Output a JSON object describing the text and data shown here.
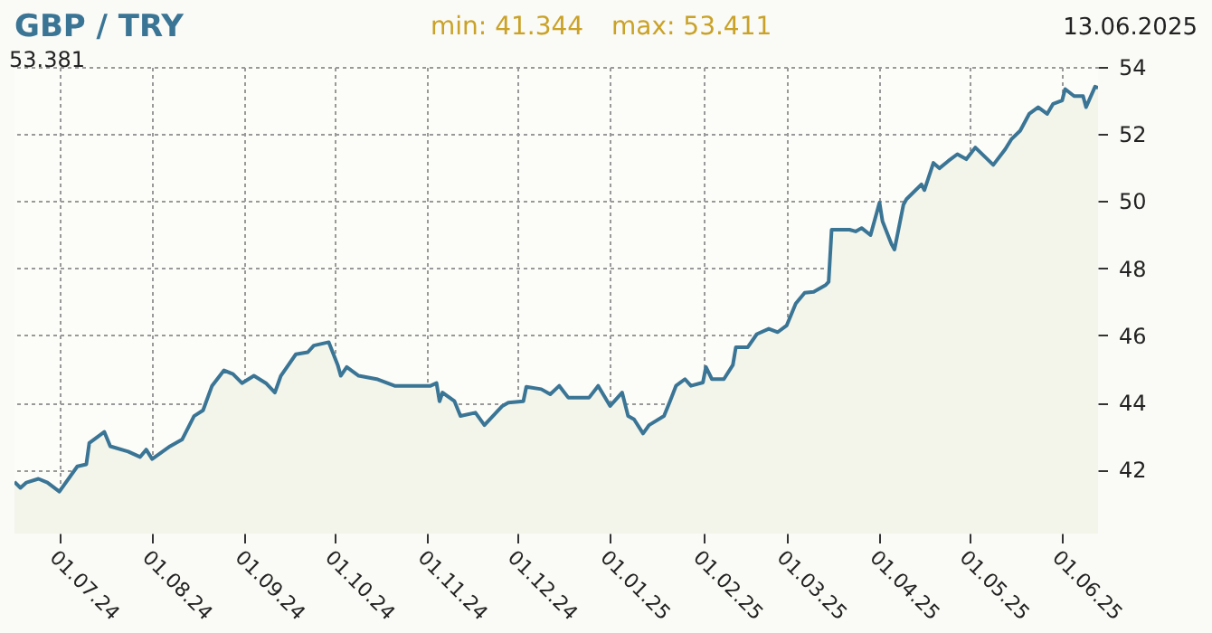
{
  "chart_data": {
    "type": "area",
    "title": "GBP / TRY",
    "annotations": [
      "min: 41.344",
      "max: 53.411",
      "13.06.2025",
      "53.381"
    ],
    "x": [
      "2024-06-16",
      "2024-06-18",
      "2024-06-20",
      "2024-06-24",
      "2024-06-27",
      "2024-07-01",
      "2024-07-07",
      "2024-07-10",
      "2024-07-11",
      "2024-07-16",
      "2024-07-18",
      "2024-07-24",
      "2024-07-28",
      "2024-07-30",
      "2024-08-01",
      "2024-08-07",
      "2024-08-11",
      "2024-08-15",
      "2024-08-18",
      "2024-08-21",
      "2024-08-25",
      "2024-08-28",
      "2024-08-31",
      "2024-09-04",
      "2024-09-08",
      "2024-09-11",
      "2024-09-13",
      "2024-09-18",
      "2024-09-22",
      "2024-09-24",
      "2024-09-29",
      "2024-10-02",
      "2024-10-03",
      "2024-10-05",
      "2024-10-09",
      "2024-10-15",
      "2024-10-21",
      "2024-10-27",
      "2024-11-02",
      "2024-11-04",
      "2024-11-05",
      "2024-11-06",
      "2024-11-10",
      "2024-11-12",
      "2024-11-17",
      "2024-11-20",
      "2024-11-26",
      "2024-11-28",
      "2024-12-03",
      "2024-12-04",
      "2024-12-09",
      "2024-12-12",
      "2024-12-15",
      "2024-12-18",
      "2024-12-25",
      "2024-12-28",
      "2025-01-01",
      "2025-01-05",
      "2025-01-07",
      "2025-01-09",
      "2025-01-12",
      "2025-01-14",
      "2025-01-19",
      "2025-01-21",
      "2025-01-23",
      "2025-01-26",
      "2025-01-28",
      "2025-02-01",
      "2025-02-02",
      "2025-02-04",
      "2025-02-08",
      "2025-02-11",
      "2025-02-12",
      "2025-02-16",
      "2025-02-19",
      "2025-02-23",
      "2025-02-26",
      "2025-03-01",
      "2025-03-04",
      "2025-03-07",
      "2025-03-10",
      "2025-03-14",
      "2025-03-15",
      "2025-03-16",
      "2025-03-22",
      "2025-03-24",
      "2025-03-26",
      "2025-03-29",
      "2025-04-01",
      "2025-04-02",
      "2025-04-05",
      "2025-04-06",
      "2025-04-09",
      "2025-04-10",
      "2025-04-15",
      "2025-04-16",
      "2025-04-19",
      "2025-04-21",
      "2025-04-24",
      "2025-04-27",
      "2025-04-30",
      "2025-05-03",
      "2025-05-09",
      "2025-05-13",
      "2025-05-15",
      "2025-05-18",
      "2025-05-21",
      "2025-05-24",
      "2025-05-27",
      "2025-05-29",
      "2025-06-01",
      "2025-06-02",
      "2025-06-05",
      "2025-06-08",
      "2025-06-09",
      "2025-06-12",
      "2025-06-13"
    ],
    "series": [
      {
        "color": "#3a7595",
        "values": [
          41.64,
          41.46,
          41.62,
          41.73,
          41.62,
          41.35,
          42.1,
          42.16,
          42.8,
          43.13,
          42.7,
          42.54,
          42.38,
          42.6,
          42.32,
          42.7,
          42.9,
          43.6,
          43.77,
          44.5,
          44.96,
          44.85,
          44.58,
          44.8,
          44.58,
          44.3,
          44.8,
          45.44,
          45.5,
          45.7,
          45.8,
          45.12,
          44.8,
          45.06,
          44.8,
          44.7,
          44.5,
          44.5,
          44.5,
          44.58,
          44.04,
          44.3,
          44.04,
          43.6,
          43.7,
          43.33,
          43.9,
          44.0,
          44.04,
          44.47,
          44.4,
          44.25,
          44.5,
          44.15,
          44.15,
          44.5,
          43.9,
          44.3,
          43.6,
          43.5,
          43.08,
          43.33,
          43.6,
          44.04,
          44.5,
          44.7,
          44.5,
          44.6,
          45.06,
          44.7,
          44.7,
          45.12,
          45.65,
          45.65,
          46.04,
          46.2,
          46.1,
          46.3,
          46.95,
          47.27,
          47.3,
          47.5,
          47.6,
          49.15,
          49.15,
          49.1,
          49.2,
          48.99,
          49.96,
          49.4,
          48.72,
          48.56,
          49.9,
          50.06,
          50.5,
          50.33,
          51.14,
          50.98,
          51.2,
          51.4,
          51.25,
          51.6,
          51.08,
          51.55,
          51.84,
          52.1,
          52.6,
          52.8,
          52.6,
          52.9,
          53.0,
          53.34,
          53.13,
          53.13,
          52.8,
          53.41,
          53.38
        ]
      }
    ],
    "xlim": [
      "2024-06-16",
      "2025-06-13"
    ],
    "xticks": [
      {
        "value": "2024-07-01",
        "label": "01.07.24"
      },
      {
        "value": "2024-08-01",
        "label": "01.08.24"
      },
      {
        "value": "2024-09-01",
        "label": "01.09.24"
      },
      {
        "value": "2024-10-01",
        "label": "01.10.24"
      },
      {
        "value": "2024-11-01",
        "label": "01.11.24"
      },
      {
        "value": "2024-12-01",
        "label": "01.12.24"
      },
      {
        "value": "2025-01-01",
        "label": "01.01.25"
      },
      {
        "value": "2025-02-01",
        "label": "01.02.25"
      },
      {
        "value": "2025-03-01",
        "label": "01.03.25"
      },
      {
        "value": "2025-04-01",
        "label": "01.04.25"
      },
      {
        "value": "2025-05-01",
        "label": "01.05.25"
      },
      {
        "value": "2025-06-01",
        "label": "01.06.25"
      }
    ],
    "ylim": [
      40.1,
      54
    ],
    "yticks": [
      42,
      44,
      46,
      48,
      50,
      52,
      54
    ],
    "grid": true,
    "marker": "none",
    "line_style": "solid"
  }
}
